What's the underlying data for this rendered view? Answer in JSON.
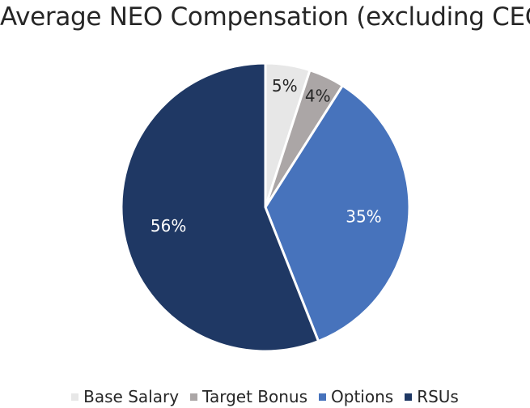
{
  "chart_data": {
    "type": "pie",
    "title": "Average NEO Compensation (excluding CEO)",
    "slices": [
      {
        "name": "Base Salary",
        "value": 5,
        "label": "5%",
        "color": "#E7E7E7",
        "label_color": "#262626"
      },
      {
        "name": "Target Bonus",
        "value": 4,
        "label": "4%",
        "color": "#ABA6A6",
        "label_color": "#262626"
      },
      {
        "name": "Options",
        "value": 35,
        "label": "35%",
        "color": "#4773BC",
        "label_color": "#FFFFFF"
      },
      {
        "name": "RSUs",
        "value": 56,
        "label": "56%",
        "color": "#1F3864",
        "label_color": "#FFFFFF"
      }
    ],
    "legend_position": "bottom",
    "start_angle": "top",
    "direction": "clockwise"
  }
}
